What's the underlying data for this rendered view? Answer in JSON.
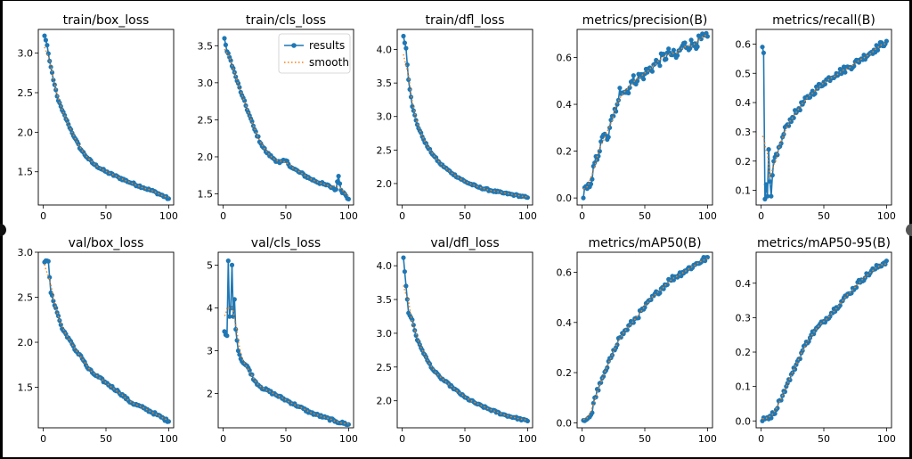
{
  "colors": {
    "results": "#1f77b4",
    "smooth": "#ff7f0e",
    "figure_bg": "#ffffff",
    "outer_bg": "#000000"
  },
  "legend": {
    "results_label": "results",
    "smooth_label": "smooth",
    "placement": "upper-right of train/cls_loss"
  },
  "chart_data": [
    {
      "type": "line",
      "title": "train/box_loss",
      "xlim": [
        -4,
        104
      ],
      "ylim": [
        1.08,
        3.3
      ],
      "xticks": [
        0,
        50,
        100
      ],
      "yticks": [
        1.5,
        2.0,
        2.5,
        3.0
      ],
      "anchors": [
        [
          1,
          3.22
        ],
        [
          3,
          3.1
        ],
        [
          5,
          2.9
        ],
        [
          8,
          2.66
        ],
        [
          12,
          2.4
        ],
        [
          15,
          2.28
        ],
        [
          20,
          2.1
        ],
        [
          25,
          1.93
        ],
        [
          30,
          1.78
        ],
        [
          35,
          1.68
        ],
        [
          40,
          1.6
        ],
        [
          50,
          1.5
        ],
        [
          60,
          1.43
        ],
        [
          70,
          1.36
        ],
        [
          80,
          1.3
        ],
        [
          90,
          1.24
        ],
        [
          100,
          1.16
        ]
      ],
      "noise": 0.015
    },
    {
      "type": "line",
      "title": "train/cls_loss",
      "xlim": [
        -4,
        104
      ],
      "ylim": [
        1.35,
        3.72
      ],
      "xticks": [
        0,
        50,
        100
      ],
      "yticks": [
        1.5,
        2.0,
        2.5,
        3.0,
        3.5
      ],
      "anchors": [
        [
          1,
          3.6
        ],
        [
          3,
          3.42
        ],
        [
          6,
          3.3
        ],
        [
          10,
          3.08
        ],
        [
          15,
          2.83
        ],
        [
          20,
          2.6
        ],
        [
          25,
          2.37
        ],
        [
          30,
          2.18
        ],
        [
          35,
          2.05
        ],
        [
          40,
          1.98
        ],
        [
          45,
          1.92
        ],
        [
          50,
          1.95
        ],
        [
          55,
          1.85
        ],
        [
          60,
          1.8
        ],
        [
          70,
          1.7
        ],
        [
          80,
          1.63
        ],
        [
          85,
          1.6
        ],
        [
          90,
          1.56
        ],
        [
          92,
          1.74
        ],
        [
          94,
          1.55
        ],
        [
          97,
          1.5
        ],
        [
          100,
          1.43
        ]
      ],
      "noise": 0.02,
      "legend": true
    },
    {
      "type": "line",
      "title": "train/dfl_loss",
      "xlim": [
        -4,
        104
      ],
      "ylim": [
        1.68,
        4.3
      ],
      "xticks": [
        0,
        50,
        100
      ],
      "yticks": [
        2.0,
        2.5,
        3.0,
        3.5,
        4.0
      ],
      "anchors": [
        [
          1,
          4.2
        ],
        [
          3,
          4.02
        ],
        [
          5,
          3.55
        ],
        [
          8,
          3.15
        ],
        [
          12,
          2.88
        ],
        [
          16,
          2.7
        ],
        [
          20,
          2.55
        ],
        [
          25,
          2.42
        ],
        [
          30,
          2.3
        ],
        [
          40,
          2.15
        ],
        [
          50,
          2.03
        ],
        [
          60,
          1.95
        ],
        [
          70,
          1.9
        ],
        [
          80,
          1.86
        ],
        [
          90,
          1.83
        ],
        [
          100,
          1.79
        ]
      ],
      "noise": 0.015
    },
    {
      "type": "line",
      "title": "metrics/precision(B)",
      "xlim": [
        -4,
        104
      ],
      "ylim": [
        -0.03,
        0.72
      ],
      "xticks": [
        0,
        50,
        100
      ],
      "yticks": [
        0.0,
        0.2,
        0.4,
        0.6
      ],
      "anchors": [
        [
          1,
          0.0
        ],
        [
          3,
          0.05
        ],
        [
          5,
          0.06
        ],
        [
          8,
          0.08
        ],
        [
          10,
          0.15
        ],
        [
          14,
          0.2
        ],
        [
          17,
          0.27
        ],
        [
          20,
          0.25
        ],
        [
          22,
          0.3
        ],
        [
          25,
          0.35
        ],
        [
          28,
          0.4
        ],
        [
          30,
          0.47
        ],
        [
          35,
          0.45
        ],
        [
          40,
          0.5
        ],
        [
          50,
          0.53
        ],
        [
          60,
          0.58
        ],
        [
          70,
          0.62
        ],
        [
          75,
          0.6
        ],
        [
          80,
          0.65
        ],
        [
          90,
          0.66
        ],
        [
          100,
          0.69
        ]
      ],
      "noise": 0.025
    },
    {
      "type": "line",
      "title": "metrics/recall(B)",
      "xlim": [
        -4,
        104
      ],
      "ylim": [
        0.05,
        0.65
      ],
      "xticks": [
        0,
        50,
        100
      ],
      "yticks": [
        0.1,
        0.2,
        0.3,
        0.4,
        0.5,
        0.6
      ],
      "anchors": [
        [
          1,
          0.59
        ],
        [
          2,
          0.57
        ],
        [
          3,
          0.07
        ],
        [
          4,
          0.12
        ],
        [
          5,
          0.08
        ],
        [
          6,
          0.24
        ],
        [
          7,
          0.13
        ],
        [
          8,
          0.08
        ],
        [
          10,
          0.2
        ],
        [
          15,
          0.25
        ],
        [
          20,
          0.32
        ],
        [
          25,
          0.35
        ],
        [
          30,
          0.38
        ],
        [
          40,
          0.43
        ],
        [
          50,
          0.47
        ],
        [
          60,
          0.5
        ],
        [
          70,
          0.52
        ],
        [
          80,
          0.55
        ],
        [
          90,
          0.58
        ],
        [
          100,
          0.61
        ]
      ],
      "noise": 0.012
    },
    {
      "type": "line",
      "title": "val/box_loss",
      "xlim": [
        -4,
        104
      ],
      "ylim": [
        1.05,
        3.0
      ],
      "xticks": [
        0,
        50,
        100
      ],
      "yticks": [
        1.5,
        2.0,
        2.5,
        3.0
      ],
      "anchors": [
        [
          1,
          2.89
        ],
        [
          4,
          2.9
        ],
        [
          6,
          2.55
        ],
        [
          10,
          2.38
        ],
        [
          15,
          2.15
        ],
        [
          20,
          2.05
        ],
        [
          25,
          1.92
        ],
        [
          30,
          1.85
        ],
        [
          35,
          1.72
        ],
        [
          40,
          1.65
        ],
        [
          50,
          1.55
        ],
        [
          60,
          1.45
        ],
        [
          70,
          1.33
        ],
        [
          80,
          1.27
        ],
        [
          90,
          1.2
        ],
        [
          100,
          1.12
        ]
      ],
      "noise": 0.015
    },
    {
      "type": "line",
      "title": "val/cls_loss",
      "xlim": [
        -4,
        104
      ],
      "ylim": [
        1.2,
        5.3
      ],
      "xticks": [
        0,
        50,
        100
      ],
      "yticks": [
        2,
        3,
        4,
        5
      ],
      "anchors": [
        [
          1,
          3.45
        ],
        [
          3,
          3.35
        ],
        [
          4,
          5.1
        ],
        [
          5,
          3.8
        ],
        [
          6,
          4.0
        ],
        [
          7,
          5.0
        ],
        [
          8,
          3.8
        ],
        [
          9,
          4.2
        ],
        [
          10,
          3.5
        ],
        [
          12,
          3.0
        ],
        [
          15,
          2.75
        ],
        [
          20,
          2.6
        ],
        [
          25,
          2.3
        ],
        [
          30,
          2.15
        ],
        [
          40,
          2.0
        ],
        [
          50,
          1.85
        ],
        [
          60,
          1.7
        ],
        [
          70,
          1.55
        ],
        [
          80,
          1.45
        ],
        [
          90,
          1.35
        ],
        [
          100,
          1.28
        ]
      ],
      "noise": 0.03
    },
    {
      "type": "line",
      "title": "val/dfl_loss",
      "xlim": [
        -4,
        104
      ],
      "ylim": [
        1.6,
        4.2
      ],
      "xticks": [
        0,
        50,
        100
      ],
      "yticks": [
        2.0,
        2.5,
        3.0,
        3.5,
        4.0
      ],
      "anchors": [
        [
          1,
          4.12
        ],
        [
          3,
          3.7
        ],
        [
          5,
          3.3
        ],
        [
          8,
          3.2
        ],
        [
          12,
          2.9
        ],
        [
          16,
          2.75
        ],
        [
          20,
          2.6
        ],
        [
          25,
          2.45
        ],
        [
          30,
          2.35
        ],
        [
          40,
          2.2
        ],
        [
          50,
          2.05
        ],
        [
          60,
          1.95
        ],
        [
          70,
          1.87
        ],
        [
          80,
          1.8
        ],
        [
          90,
          1.75
        ],
        [
          100,
          1.7
        ]
      ],
      "noise": 0.015
    },
    {
      "type": "line",
      "title": "metrics/mAP50(B)",
      "xlim": [
        -4,
        104
      ],
      "ylim": [
        -0.02,
        0.68
      ],
      "xticks": [
        0,
        50,
        100
      ],
      "yticks": [
        0.0,
        0.2,
        0.4,
        0.6
      ],
      "anchors": [
        [
          1,
          0.01
        ],
        [
          5,
          0.02
        ],
        [
          8,
          0.04
        ],
        [
          10,
          0.1
        ],
        [
          15,
          0.16
        ],
        [
          20,
          0.22
        ],
        [
          25,
          0.29
        ],
        [
          30,
          0.34
        ],
        [
          35,
          0.37
        ],
        [
          40,
          0.4
        ],
        [
          50,
          0.46
        ],
        [
          60,
          0.52
        ],
        [
          70,
          0.57
        ],
        [
          80,
          0.6
        ],
        [
          90,
          0.63
        ],
        [
          100,
          0.66
        ]
      ],
      "noise": 0.012
    },
    {
      "type": "line",
      "title": "metrics/mAP50-95(B)",
      "xlim": [
        -4,
        104
      ],
      "ylim": [
        -0.02,
        0.49
      ],
      "xticks": [
        0,
        50,
        100
      ],
      "yticks": [
        0.0,
        0.1,
        0.2,
        0.3,
        0.4
      ],
      "anchors": [
        [
          1,
          0.0
        ],
        [
          5,
          0.01
        ],
        [
          10,
          0.02
        ],
        [
          15,
          0.06
        ],
        [
          20,
          0.1
        ],
        [
          25,
          0.14
        ],
        [
          30,
          0.18
        ],
        [
          35,
          0.22
        ],
        [
          40,
          0.25
        ],
        [
          50,
          0.29
        ],
        [
          60,
          0.33
        ],
        [
          70,
          0.37
        ],
        [
          80,
          0.41
        ],
        [
          90,
          0.44
        ],
        [
          100,
          0.465
        ]
      ],
      "noise": 0.008
    }
  ]
}
